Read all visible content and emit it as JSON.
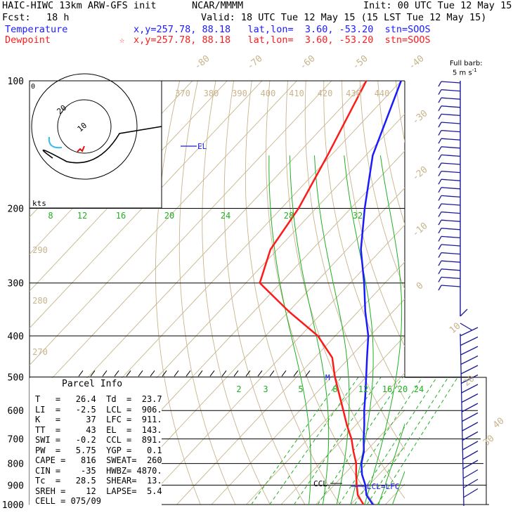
{
  "header": {
    "model": "HAIC-HIWC 13km ARW-GFS init",
    "org": "NCAR/MMMM",
    "init": "Init: 00 UTC Tue 12 May 15",
    "fcst_label": "Fcst:",
    "fcst_value": "18 h",
    "valid": "Valid: 18 UTC Tue 12 May 15 (15 LST Tue 12 May 15)",
    "temp_label": "Temperature",
    "temp_info": "x,y=257.78, 88.18   lat,lon=  3.60, -53.20  stn=SOOS",
    "dew_label": "Dewpoint",
    "dew_marker": "☆",
    "dew_info": "x,y=257.78, 88.18   lat,lon=  3.60, -53.20  stn=SOOS",
    "barb_key_line1": "Full barb:",
    "barb_key_line2": "5 m s",
    "barb_key_exp": "-1"
  },
  "colors": {
    "temperature": "#1a1aff",
    "dewpoint": "#ff1a1a",
    "dry_adiabat": "#c8b48c",
    "isotherm": "#c8b48c",
    "moist_adiabat": "#20b020",
    "mixing_ratio": "#20b020",
    "wind": "#1a1a99",
    "hodo_red": "#e01010",
    "hodo_cyan": "#33bbee"
  },
  "chart_data": {
    "type": "line",
    "title": "Skew-T log-P sounding",
    "pressure_levels": [
      "100",
      "200",
      "300",
      "400",
      "500",
      "600",
      "700",
      "800",
      "900",
      "1000"
    ],
    "isotherm_labels": [
      "-80",
      "-70",
      "-60",
      "-50",
      "-40",
      "-30",
      "-20",
      "-10",
      "0",
      "10",
      "20",
      "30",
      "40"
    ],
    "theta_labels_top": [
      "370",
      "380",
      "390",
      "400",
      "410",
      "420",
      "430",
      "440"
    ],
    "theta_labels_left": [
      "290",
      "280",
      "270"
    ],
    "theta_e_labels": [
      "8",
      "12",
      "16",
      "20",
      "24",
      "28",
      "32"
    ],
    "mixing_ratio_labels": [
      "2",
      "3",
      "5",
      "8",
      "12",
      "16",
      "20",
      "24"
    ],
    "series": [
      {
        "name": "Temperature",
        "pressure": [
          1000,
          950,
          900,
          850,
          800,
          750,
          700,
          650,
          600,
          550,
          500,
          450,
          400,
          350,
          300,
          250,
          200,
          150,
          100
        ],
        "values": [
          26.4,
          22.0,
          19.0,
          15.2,
          12.0,
          9.5,
          6.0,
          2.5,
          -1.5,
          -5.5,
          -10.0,
          -15.0,
          -20.5,
          -28.0,
          -36.0,
          -46.0,
          -56.0,
          -68.0,
          -80.0
        ]
      },
      {
        "name": "Dewpoint",
        "pressure": [
          1000,
          950,
          900,
          850,
          800,
          750,
          700,
          650,
          600,
          550,
          500,
          450,
          400,
          350,
          300,
          250,
          200,
          150,
          100
        ],
        "values": [
          23.7,
          19.5,
          16.5,
          13.5,
          10.5,
          6.5,
          2.5,
          -2.5,
          -7.5,
          -13.0,
          -19.0,
          -25.0,
          -35.0,
          -50.0,
          -66.0,
          -72.0,
          -75.0,
          -81.0,
          -90.0
        ]
      }
    ],
    "annotations": [
      "EL",
      "CCL",
      "LCL=LFC",
      "M"
    ],
    "axis_label": "kts"
  },
  "hodograph": {
    "ring_labels": [
      "10",
      "20"
    ],
    "kts_label": "kts",
    "corner_label": "0"
  },
  "parcel_info": {
    "title": "Parcel Info",
    "rows": [
      "T   =   26.4  Td  =  23.7",
      "LI  =   -2.5  LCL =  906.",
      "K   =     37  LFC =  911.",
      "TT  =     43  EL  =  143.",
      "SWI =   -0.2  CCL =  891.",
      "PW  =   5.75  YGP =   0.1",
      "CAPE =   816  SWEAT=  260",
      "CIN =    -35  HWBZ= 4870.",
      "Tc  =   28.5  SHEAR=  13.",
      "SREH =    12  LAPSE=  5.4",
      "CELL = 075/09"
    ]
  }
}
